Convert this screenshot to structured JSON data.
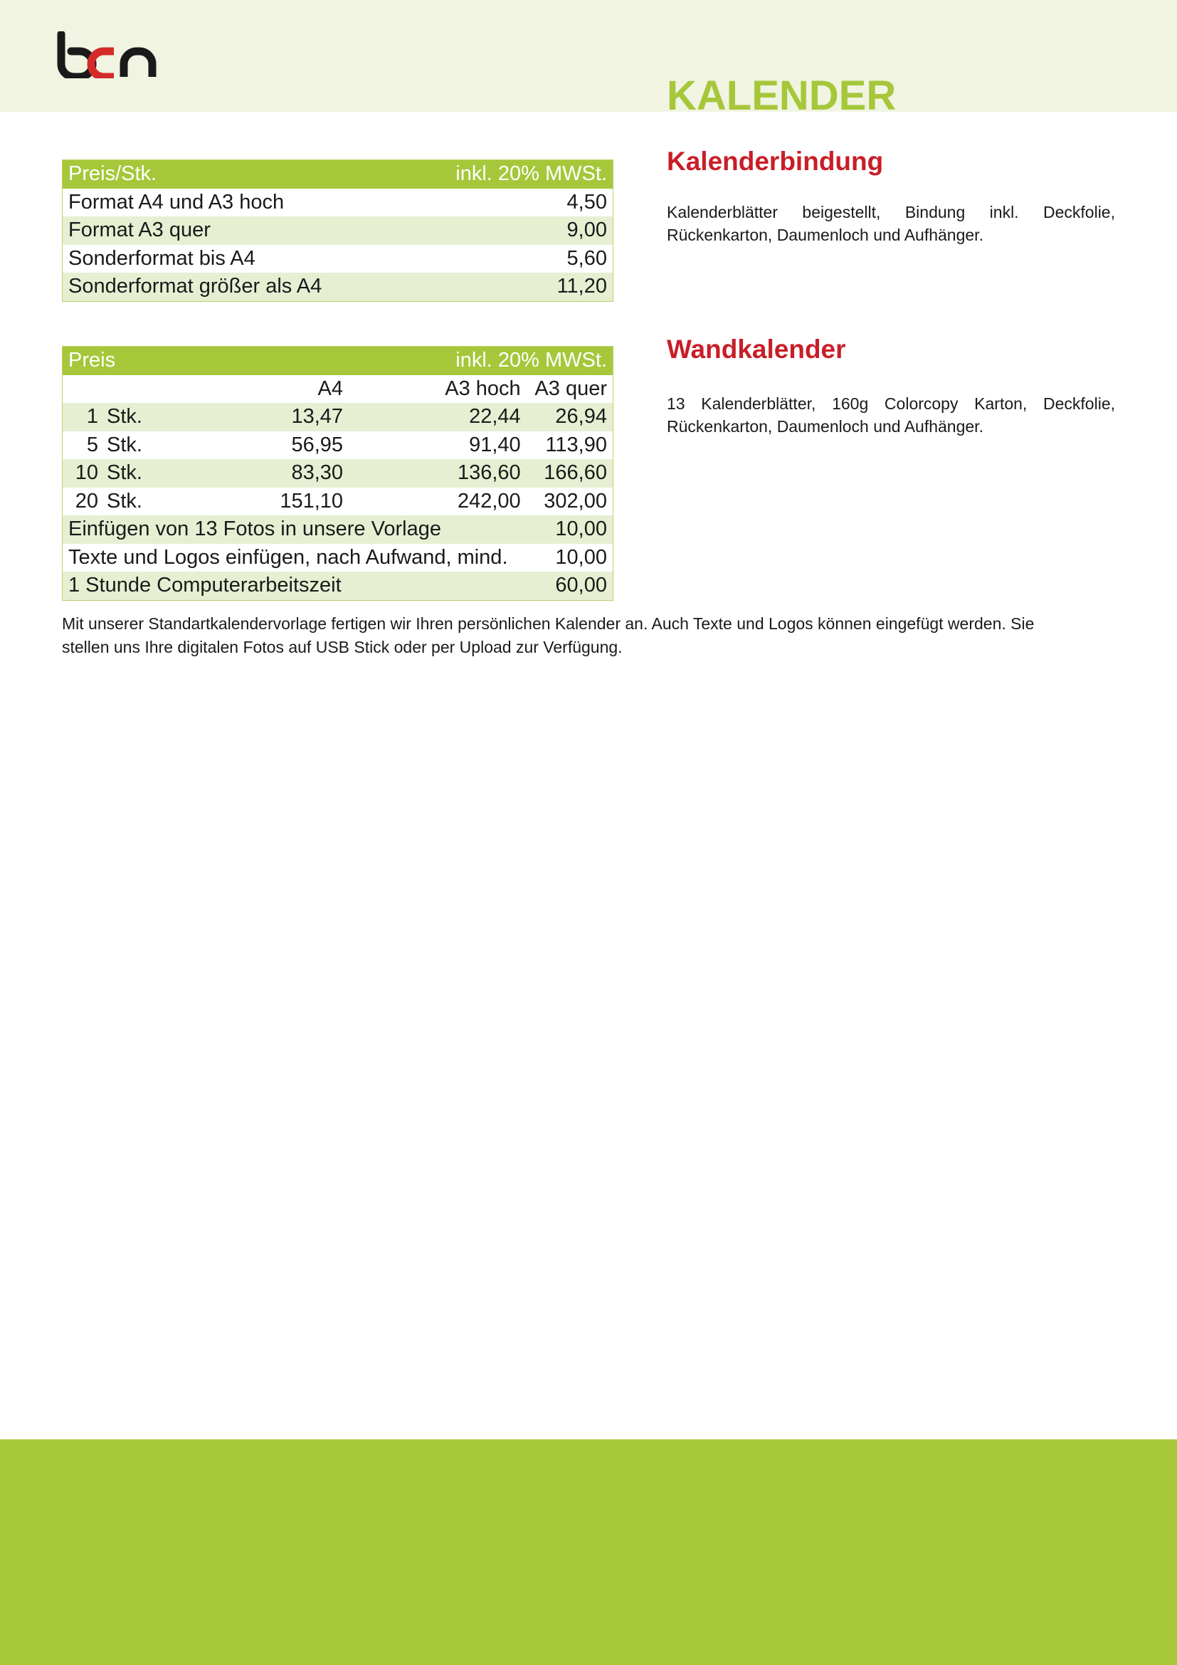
{
  "logo": {
    "text": "bcn",
    "colors": {
      "b": "#1a1a1a",
      "c": "#d42a2a",
      "n": "#1a1a1a"
    }
  },
  "title": "KALENDER",
  "colors": {
    "accent_green": "#a6c73a",
    "heading_red": "#c81e28",
    "row_alt": "#e7efd3",
    "header_band": "#f0f4e1"
  },
  "table_stk": {
    "header_left": "Preis/Stk.",
    "header_right": "inkl. 20% MWSt.",
    "rows": [
      {
        "label": "Format A4 und A3 hoch",
        "price": "4,50"
      },
      {
        "label": "Format A3 quer",
        "price": "9,00"
      },
      {
        "label": "Sonderformat bis A4",
        "price": "5,60"
      },
      {
        "label": "Sonderformat größer als A4",
        "price": "11,20"
      }
    ]
  },
  "table_preis": {
    "header_left": "Preis",
    "header_right": "inkl. 20% MWSt.",
    "columns": [
      "A4",
      "A3 hoch",
      "A3 quer"
    ],
    "rows": [
      {
        "qty": "1",
        "unit": "Stk.",
        "a4": "13,47",
        "a3hoch": "22,44",
        "a3quer": "26,94"
      },
      {
        "qty": "5",
        "unit": "Stk.",
        "a4": "56,95",
        "a3hoch": "91,40",
        "a3quer": "113,90"
      },
      {
        "qty": "10",
        "unit": "Stk.",
        "a4": "83,30",
        "a3hoch": "136,60",
        "a3quer": "166,60"
      },
      {
        "qty": "20",
        "unit": "Stk.",
        "a4": "151,10",
        "a3hoch": "242,00",
        "a3quer": "302,00"
      }
    ],
    "extras": [
      {
        "label": "Einfügen von 13 Fotos in unsere Vorlage",
        "price": "10,00"
      },
      {
        "label": "Texte und Logos einfügen, nach Aufwand, mind.",
        "price": "10,00"
      },
      {
        "label": "1 Stunde Computerarbeitszeit",
        "price": "60,00"
      }
    ]
  },
  "note": "Mit unserer Standartkalendervorlage fertigen wir Ihren persönlichen Kalender an. Auch Texte und Logos können eingefügt werden. Sie stellen uns Ihre digitalen Fotos auf USB Stick oder per Upload zur Verfügung.",
  "sections": [
    {
      "heading": "Kalenderbindung",
      "text": "Kalenderblätter beigestellt, Bindung inkl. Deckfolie, Rückenkarton, Daumenloch und Aufhänger."
    },
    {
      "heading": "Wandkalender",
      "text": "13 Kalenderblätter, 160g Colorcopy Karton, Deckfolie, Rückenkarton, Daumenloch und Aufhänger."
    }
  ]
}
